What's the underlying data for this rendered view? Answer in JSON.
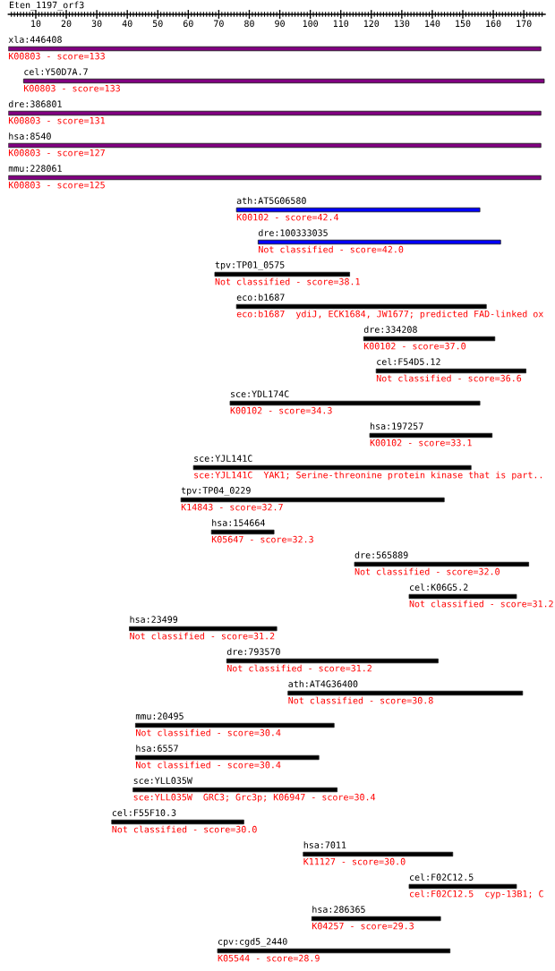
{
  "chart_data": {
    "type": "bar",
    "orientation": "horizontal",
    "title": "Eten_1197_orf3",
    "categories": [
      "xla:446408",
      "cel:Y50D7A.7",
      "dre:386801",
      "hsa:8540",
      "mmu:228061",
      "ath:AT5G06580",
      "dre:100333035",
      "tpv:TP01_0575",
      "eco:b1687",
      "dre:334208",
      "cel:F54D5.12",
      "sce:YDL174C",
      "hsa:197257",
      "sce:YJL141C",
      "tpv:TP04_0229",
      "hsa:154664",
      "dre:565889",
      "cel:K06G5.2",
      "hsa:23499",
      "dre:793570",
      "ath:AT4G36400",
      "mmu:20495",
      "hsa:6557",
      "sce:YLL035W",
      "cel:F55F10.3",
      "hsa:7011",
      "cel:F02C12.5",
      "hsa:286365",
      "cpv:cgd5_2440"
    ],
    "base": [
      1,
      6.0,
      1,
      1,
      1,
      75.8,
      82.9,
      68.7,
      75.8,
      117.5,
      121.6,
      73.7,
      119.5,
      61.7,
      57.6,
      67.6,
      114.5,
      132.4,
      40.7,
      72.6,
      92.7,
      42.7,
      42.7,
      41.9,
      34.9,
      97.7,
      132.4,
      100.5,
      69.6
    ],
    "values": [
      174.6,
      170.7,
      174.6,
      174.6,
      174.6,
      79.8,
      79.5,
      44.2,
      81.9,
      43.0,
      49.1,
      81.9,
      40.1,
      91.0,
      86.3,
      20.5,
      57.1,
      35.2,
      48.3,
      69.3,
      76.9,
      65.1,
      60.1,
      66.9,
      43.3,
      49.0,
      35.2,
      42.2,
      76.2
    ],
    "colors": [
      "#800080",
      "#800080",
      "#800080",
      "#800080",
      "#800080",
      "#0000ff",
      "#0000ff",
      "#000000",
      "#000000",
      "#000000",
      "#000000",
      "#000000",
      "#000000",
      "#000000",
      "#000000",
      "#000000",
      "#000000",
      "#000000",
      "#000000",
      "#000000",
      "#000000",
      "#000000",
      "#000000",
      "#000000",
      "#000000",
      "#000000",
      "#000000",
      "#000000",
      "#000000"
    ],
    "xlim": [
      1,
      177
    ],
    "xticks": [
      {
        "value": 2,
        "label": null
      },
      {
        "value": 3,
        "label": null
      },
      {
        "value": 4,
        "label": null
      },
      {
        "value": 5,
        "label": null
      },
      {
        "value": 6,
        "label": null
      },
      {
        "value": 7,
        "label": null
      },
      {
        "value": 8,
        "label": null
      },
      {
        "value": 9,
        "label": null
      },
      10,
      {
        "value": 11,
        "label": null
      },
      {
        "value": 12,
        "label": null
      },
      {
        "value": 13,
        "label": null
      },
      {
        "value": 14,
        "label": null
      },
      {
        "value": 15,
        "label": null
      },
      {
        "value": 16,
        "label": null
      },
      {
        "value": 17,
        "label": null
      },
      {
        "value": 18,
        "label": null
      },
      {
        "value": 19,
        "label": null
      },
      20,
      {
        "value": 21,
        "label": null
      },
      {
        "value": 22,
        "label": null
      },
      {
        "value": 23,
        "label": null
      },
      {
        "value": 24,
        "label": null
      },
      {
        "value": 25,
        "label": null
      },
      {
        "value": 26,
        "label": null
      },
      {
        "value": 27,
        "label": null
      },
      {
        "value": 28,
        "label": null
      },
      {
        "value": 29,
        "label": null
      },
      30,
      {
        "value": 31,
        "label": null
      },
      {
        "value": 32,
        "label": null
      },
      {
        "value": 33,
        "label": null
      },
      {
        "value": 34,
        "label": null
      },
      {
        "value": 35,
        "label": null
      },
      {
        "value": 36,
        "label": null
      },
      {
        "value": 37,
        "label": null
      },
      {
        "value": 38,
        "label": null
      },
      {
        "value": 39,
        "label": null
      },
      40,
      {
        "value": 41,
        "label": null
      },
      {
        "value": 42,
        "label": null
      },
      {
        "value": 43,
        "label": null
      },
      {
        "value": 44,
        "label": null
      },
      {
        "value": 45,
        "label": null
      },
      {
        "value": 46,
        "label": null
      },
      {
        "value": 47,
        "label": null
      },
      {
        "value": 48,
        "label": null
      },
      {
        "value": 49,
        "label": null
      },
      50,
      {
        "value": 51,
        "label": null
      },
      {
        "value": 52,
        "label": null
      },
      {
        "value": 53,
        "label": null
      },
      {
        "value": 54,
        "label": null
      },
      {
        "value": 55,
        "label": null
      },
      {
        "value": 56,
        "label": null
      },
      {
        "value": 57,
        "label": null
      },
      {
        "value": 58,
        "label": null
      },
      {
        "value": 59,
        "label": null
      },
      60,
      {
        "value": 61,
        "label": null
      },
      {
        "value": 62,
        "label": null
      },
      {
        "value": 63,
        "label": null
      },
      {
        "value": 64,
        "label": null
      },
      {
        "value": 65,
        "label": null
      },
      {
        "value": 66,
        "label": null
      },
      {
        "value": 67,
        "label": null
      },
      {
        "value": 68,
        "label": null
      },
      {
        "value": 69,
        "label": null
      },
      70,
      {
        "value": 71,
        "label": null
      },
      {
        "value": 72,
        "label": null
      },
      {
        "value": 73,
        "label": null
      },
      {
        "value": 74,
        "label": null
      },
      {
        "value": 75,
        "label": null
      },
      {
        "value": 76,
        "label": null
      },
      {
        "value": 77,
        "label": null
      },
      {
        "value": 78,
        "label": null
      },
      {
        "value": 79,
        "label": null
      },
      80,
      {
        "value": 81,
        "label": null
      },
      {
        "value": 82,
        "label": null
      },
      {
        "value": 83,
        "label": null
      },
      {
        "value": 84,
        "label": null
      },
      {
        "value": 85,
        "label": null
      },
      {
        "value": 86,
        "label": null
      },
      {
        "value": 87,
        "label": null
      },
      {
        "value": 88,
        "label": null
      },
      {
        "value": 89,
        "label": null
      },
      90,
      {
        "value": 91,
        "label": null
      },
      {
        "value": 92,
        "label": null
      },
      {
        "value": 93,
        "label": null
      },
      {
        "value": 94,
        "label": null
      },
      {
        "value": 95,
        "label": null
      },
      {
        "value": 96,
        "label": null
      },
      {
        "value": 97,
        "label": null
      },
      {
        "value": 98,
        "label": null
      },
      {
        "value": 99,
        "label": null
      },
      100,
      {
        "value": 101,
        "label": null
      },
      {
        "value": 102,
        "label": null
      },
      {
        "value": 103,
        "label": null
      },
      {
        "value": 104,
        "label": null
      },
      {
        "value": 105,
        "label": null
      },
      {
        "value": 106,
        "label": null
      },
      {
        "value": 107,
        "label": null
      },
      {
        "value": 108,
        "label": null
      },
      {
        "value": 109,
        "label": null
      },
      110,
      {
        "value": 111,
        "label": null
      },
      {
        "value": 112,
        "label": null
      },
      {
        "value": 113,
        "label": null
      },
      {
        "value": 114,
        "label": null
      },
      {
        "value": 115,
        "label": null
      },
      {
        "value": 116,
        "label": null
      },
      {
        "value": 117,
        "label": null
      },
      {
        "value": 118,
        "label": null
      },
      {
        "value": 119,
        "label": null
      },
      120,
      {
        "value": 121,
        "label": null
      },
      {
        "value": 122,
        "label": null
      },
      {
        "value": 123,
        "label": null
      },
      {
        "value": 124,
        "label": null
      },
      {
        "value": 125,
        "label": null
      },
      {
        "value": 126,
        "label": null
      },
      {
        "value": 127,
        "label": null
      },
      {
        "value": 128,
        "label": null
      },
      {
        "value": 129,
        "label": null
      },
      130,
      {
        "value": 131,
        "label": null
      },
      {
        "value": 132,
        "label": null
      },
      {
        "value": 133,
        "label": null
      },
      {
        "value": 134,
        "label": null
      },
      {
        "value": 135,
        "label": null
      },
      {
        "value": 136,
        "label": null
      },
      {
        "value": 137,
        "label": null
      },
      {
        "value": 138,
        "label": null
      },
      {
        "value": 139,
        "label": null
      },
      140,
      {
        "value": 141,
        "label": null
      },
      {
        "value": 142,
        "label": null
      },
      {
        "value": 143,
        "label": null
      },
      {
        "value": 144,
        "label": null
      },
      {
        "value": 145,
        "label": null
      },
      {
        "value": 146,
        "label": null
      },
      {
        "value": 147,
        "label": null
      },
      {
        "value": 148,
        "label": null
      },
      {
        "value": 149,
        "label": null
      },
      150,
      {
        "value": 151,
        "label": null
      },
      {
        "value": 152,
        "label": null
      },
      {
        "value": 153,
        "label": null
      },
      {
        "value": 154,
        "label": null
      },
      {
        "value": 155,
        "label": null
      },
      {
        "value": 156,
        "label": null
      },
      {
        "value": 157,
        "label": null
      },
      {
        "value": 158,
        "label": null
      },
      {
        "value": 159,
        "label": null
      },
      160,
      {
        "value": 161,
        "label": null
      },
      {
        "value": 162,
        "label": null
      },
      {
        "value": 163,
        "label": null
      },
      {
        "value": 164,
        "label": null
      },
      {
        "value": 165,
        "label": null
      },
      {
        "value": 166,
        "label": null
      },
      {
        "value": 167,
        "label": null
      },
      {
        "value": 168,
        "label": null
      },
      {
        "value": 169,
        "label": null
      },
      170,
      {
        "value": 171,
        "label": null
      },
      {
        "value": 172,
        "label": null
      },
      {
        "value": 173,
        "label": null
      },
      {
        "value": 174,
        "label": null
      },
      {
        "value": 175,
        "label": null
      },
      {
        "value": 176,
        "label": null
      }
    ],
    "annotations": [
      "K00803 - score=133",
      "K00803 - score=133",
      "K00803 - score=131",
      "K00803 - score=127",
      "K00803 - score=125",
      "K00102 - score=42.4",
      "Not classified - score=42.0",
      "Not classified - score=38.1",
      "eco:b1687  ydiJ, ECK1684, JW1677; predicted FAD-linked ox",
      "K00102 - score=37.0",
      "Not classified - score=36.6",
      "K00102 - score=34.3",
      "K00102 - score=33.1",
      "sce:YJL141C  YAK1; Serine-threonine protein kinase that is part..",
      "K14843 - score=32.7",
      "K05647 - score=32.3",
      "Not classified - score=32.0",
      "Not classified - score=31.2",
      "Not classified - score=31.2",
      "Not classified - score=31.2",
      "Not classified - score=30.8",
      "Not classified - score=30.4",
      "Not classified - score=30.4",
      "sce:YLL035W  GRC3; Grc3p; K06947 - score=30.4",
      "Not classified - score=30.0",
      "K11127 - score=30.0",
      "cel:F02C12.5  cyp-13B1; C",
      "K04257 - score=29.3",
      "K05544 - score=28.9"
    ]
  }
}
